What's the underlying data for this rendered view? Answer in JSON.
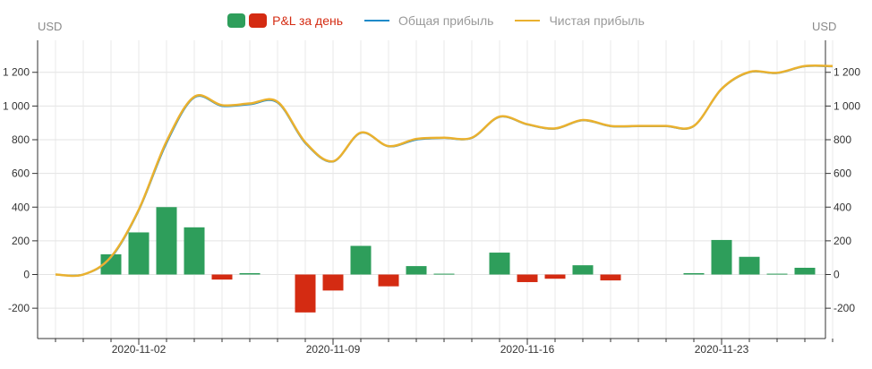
{
  "legend": {
    "items": [
      {
        "label": "P&L за день",
        "type": "bars",
        "colors": [
          "#2e9e5b",
          "#d42b12"
        ]
      },
      {
        "label": "Общая прибыль",
        "type": "line",
        "color": "#1f8ac9"
      },
      {
        "label": "Чистая прибыль",
        "type": "line",
        "color": "#eab12f"
      }
    ]
  },
  "axes": {
    "left_unit": "USD",
    "right_unit": "USD"
  },
  "chart_data": {
    "type": "bar+line",
    "x": [
      "2020-10-30",
      "2020-10-31",
      "2020-11-01",
      "2020-11-02",
      "2020-11-03",
      "2020-11-04",
      "2020-11-05",
      "2020-11-06",
      "2020-11-07",
      "2020-11-08",
      "2020-11-09",
      "2020-11-10",
      "2020-11-11",
      "2020-11-12",
      "2020-11-13",
      "2020-11-14",
      "2020-11-15",
      "2020-11-16",
      "2020-11-17",
      "2020-11-18",
      "2020-11-19",
      "2020-11-20",
      "2020-11-21",
      "2020-11-22",
      "2020-11-23",
      "2020-11-24",
      "2020-11-25",
      "2020-11-26",
      "2020-11-27"
    ],
    "x_tick_labels": [
      "2020-11-02",
      "2020-11-09",
      "2020-11-16",
      "2020-11-23"
    ],
    "y_ticks": [
      -200,
      0,
      200,
      400,
      600,
      800,
      1000,
      1200
    ],
    "y_tick_labels": [
      "-200",
      "0",
      "200",
      "400",
      "600",
      "800",
      "1 000",
      "1 200"
    ],
    "ylim": [
      -380,
      1390
    ],
    "grid": true,
    "colors": {
      "positive": "#2e9e5b",
      "negative": "#d42b12"
    },
    "series": [
      {
        "name": "P&L за день",
        "type": "bar",
        "values": [
          0,
          0,
          120,
          250,
          400,
          280,
          -30,
          8,
          0,
          -225,
          -95,
          170,
          -70,
          50,
          5,
          0,
          130,
          -45,
          -25,
          55,
          -35,
          0,
          0,
          8,
          205,
          105,
          5,
          40,
          0
        ]
      },
      {
        "name": "Общая прибыль",
        "type": "line",
        "color": "#1f8ac9",
        "values": [
          0,
          0,
          100,
          380,
          780,
          1050,
          1000,
          1010,
          1020,
          780,
          670,
          840,
          760,
          800,
          810,
          810,
          935,
          890,
          865,
          915,
          880,
          880,
          880,
          880,
          1100,
          1200,
          1195,
          1235,
          1235
        ]
      },
      {
        "name": "Чистая прибыль",
        "type": "line",
        "color": "#eab12f",
        "values": [
          0,
          0,
          105,
          385,
          790,
          1055,
          1005,
          1015,
          1025,
          785,
          672,
          842,
          762,
          805,
          812,
          812,
          937,
          892,
          867,
          917,
          882,
          882,
          882,
          882,
          1102,
          1202,
          1197,
          1237,
          1237
        ]
      }
    ]
  }
}
